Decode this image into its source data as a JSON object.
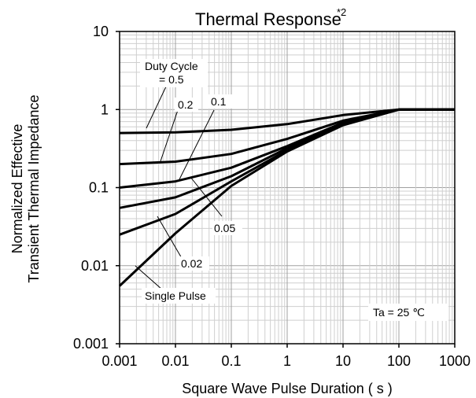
{
  "chart_data": {
    "type": "line",
    "title": "Thermal Response",
    "title_superscript": "*2",
    "xlabel": "Square Wave Pulse Duration ( s )",
    "ylabel": [
      "Normalized Effective",
      "Transient Thermal Impedance"
    ],
    "xscale": "log",
    "yscale": "log",
    "xlim": [
      0.001,
      1000
    ],
    "ylim": [
      0.001,
      10
    ],
    "grid": true,
    "x_ticks": [
      {
        "value": 0.001,
        "label": "0.001"
      },
      {
        "value": 0.01,
        "label": "0.01"
      },
      {
        "value": 0.1,
        "label": "0.1"
      },
      {
        "value": 1,
        "label": "1"
      },
      {
        "value": 10,
        "label": "10"
      },
      {
        "value": 100,
        "label": "100"
      },
      {
        "value": 1000,
        "label": "1000"
      }
    ],
    "y_ticks": [
      {
        "value": 0.001,
        "label": "0.001"
      },
      {
        "value": 0.01,
        "label": "0.01"
      },
      {
        "value": 0.1,
        "label": "0.1"
      },
      {
        "value": 1,
        "label": "1"
      },
      {
        "value": 10,
        "label": "10"
      }
    ],
    "series": [
      {
        "name": "= 0.5",
        "x": [
          0.001,
          0.01,
          0.1,
          1,
          10,
          100,
          1000
        ],
        "y": [
          0.5,
          0.51,
          0.55,
          0.65,
          0.85,
          1.0,
          1.0
        ]
      },
      {
        "name": "0.2",
        "x": [
          0.001,
          0.01,
          0.1,
          1,
          10,
          100,
          1000
        ],
        "y": [
          0.2,
          0.215,
          0.27,
          0.42,
          0.72,
          1.0,
          1.0
        ]
      },
      {
        "name": "0.1",
        "x": [
          0.001,
          0.01,
          0.1,
          1,
          10,
          100,
          1000
        ],
        "y": [
          0.1,
          0.12,
          0.18,
          0.34,
          0.68,
          1.0,
          1.0
        ]
      },
      {
        "name": "0.05",
        "x": [
          0.001,
          0.01,
          0.1,
          1,
          10,
          100,
          1000
        ],
        "y": [
          0.055,
          0.075,
          0.14,
          0.32,
          0.66,
          1.0,
          1.0
        ]
      },
      {
        "name": "0.02",
        "x": [
          0.001,
          0.01,
          0.1,
          1,
          10,
          100,
          1000
        ],
        "y": [
          0.025,
          0.046,
          0.12,
          0.3,
          0.64,
          1.0,
          1.0
        ]
      },
      {
        "name": "Single Pulse",
        "x": [
          0.001,
          0.01,
          0.1,
          1,
          10,
          100,
          1000
        ],
        "y": [
          0.0055,
          0.026,
          0.105,
          0.29,
          0.63,
          1.0,
          1.0
        ]
      }
    ],
    "annotations": {
      "duty_cycle_line1": "Duty  Cycle",
      "duty_cycle_line2": "= 0.5",
      "d02": "0.2",
      "d01": "0.1",
      "d005": "0.05",
      "d002": "0.02",
      "single_pulse": "Single Pulse",
      "ambient": "Ta = 25 ℃"
    }
  }
}
